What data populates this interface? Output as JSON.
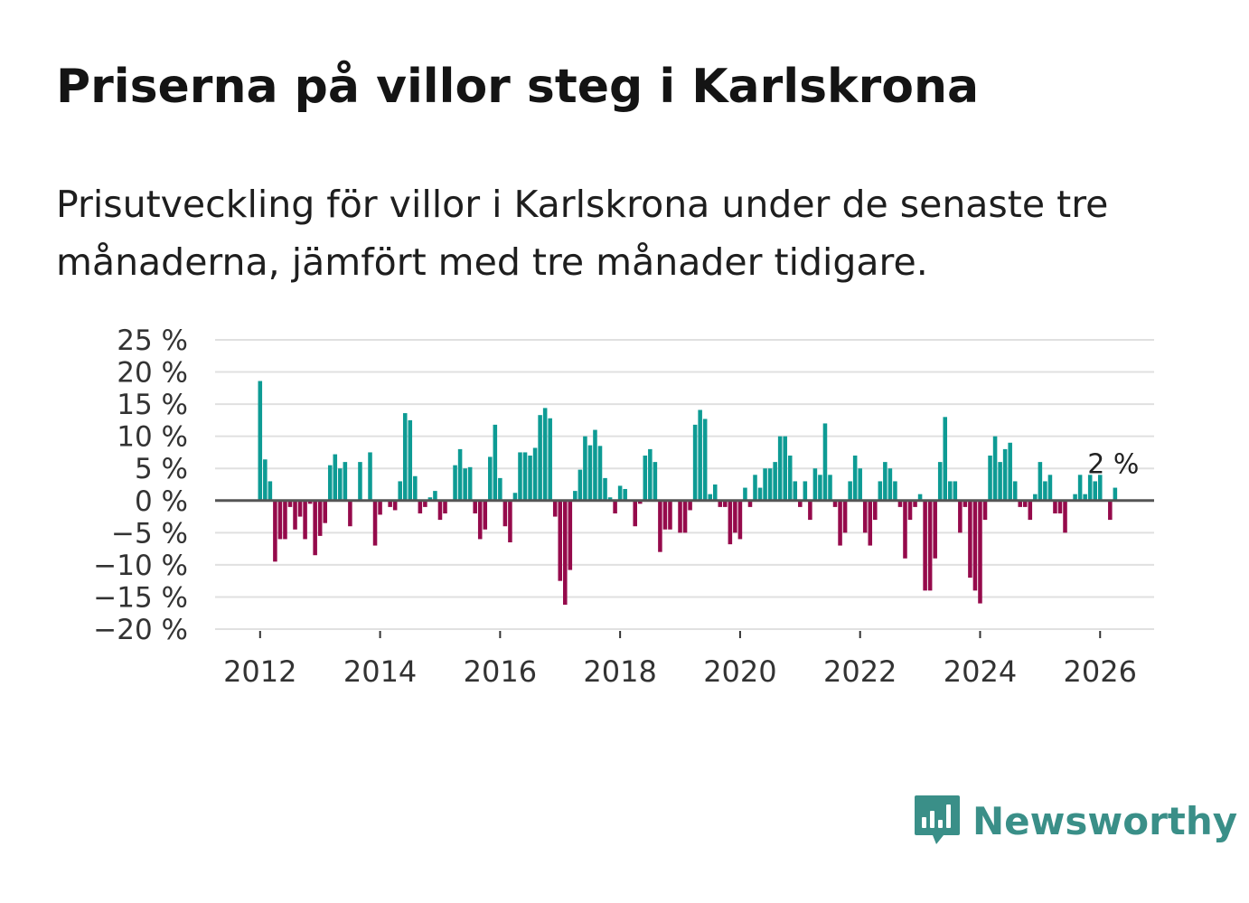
{
  "title": "Priserna på villor steg i Karlskrona",
  "subtitle": "Prisutveckling för villor i Karlskrona under de senaste tre månaderna, jämfört med tre månader tidigare.",
  "brand": {
    "name": "Newsworthy",
    "color": "#3a8f88",
    "icon": "bar-chart-speech-bubble-icon"
  },
  "colors": {
    "positive": "#0d9b94",
    "negative": "#950a4b",
    "grid": "#e0e0e0",
    "zero": "#555555"
  },
  "chart_data": {
    "type": "bar",
    "title": "Priserna på villor steg i Karlskrona",
    "xlabel": "",
    "ylabel": "",
    "ylim": [
      -20,
      25
    ],
    "xlim": [
      2011.25,
      2026.9
    ],
    "y_ticks": [
      25,
      20,
      15,
      10,
      5,
      0,
      -5,
      -10,
      -15,
      -20
    ],
    "y_tick_labels": [
      "25 %",
      "20 %",
      "15 %",
      "10 %",
      "5 %",
      "0 %",
      "−5 %",
      "−10 %",
      "−15 %",
      "−20 %"
    ],
    "x_ticks": [
      2012,
      2014,
      2016,
      2018,
      2020,
      2022,
      2024,
      2026
    ],
    "x_tick_labels": [
      "2012",
      "2014",
      "2016",
      "2018",
      "2020",
      "2022",
      "2024",
      "2026"
    ],
    "start": "2012-01",
    "frequency": "monthly",
    "values": [
      18.6,
      6.4,
      3.0,
      -9.5,
      -6.0,
      -6.0,
      -1.0,
      -4.5,
      -2.5,
      -6.0,
      -0.5,
      -8.5,
      -5.5,
      -3.5,
      5.5,
      7.2,
      5.0,
      6.0,
      -4.0,
      0,
      6.0,
      0,
      7.5,
      -7.0,
      -2.2,
      0,
      -1.0,
      -1.5,
      3.0,
      13.6,
      12.5,
      3.8,
      -2.0,
      -1.0,
      0.5,
      1.5,
      -3.0,
      -2.0,
      0,
      5.5,
      8.0,
      5.0,
      5.2,
      -2.0,
      -6.0,
      -4.5,
      6.8,
      11.8,
      3.5,
      -4.0,
      -6.5,
      1.2,
      7.5,
      7.5,
      7.0,
      8.2,
      13.3,
      14.4,
      12.8,
      -2.5,
      -12.5,
      -16.2,
      -10.8,
      1.5,
      4.8,
      10.0,
      8.6,
      11.0,
      8.5,
      3.5,
      0.5,
      -2.0,
      2.3,
      1.8,
      0,
      -4.0,
      -0.5,
      7.0,
      8.0,
      6.0,
      -8.0,
      -4.5,
      -4.5,
      0,
      -5.0,
      -5.0,
      -1.5,
      11.8,
      14.1,
      12.7,
      1.0,
      2.5,
      -1.0,
      -1.0,
      -6.8,
      -5.0,
      -6.0,
      2.0,
      -1.0,
      4.0,
      2.0,
      5.0,
      5.0,
      6.0,
      10.0,
      10.0,
      7.0,
      3.0,
      -1.0,
      3.0,
      -3.0,
      5.0,
      4.0,
      12.0,
      4.0,
      -1.0,
      -7.0,
      -5.0,
      3.0,
      7.0,
      5.0,
      -5.0,
      -7.0,
      -3.0,
      3.0,
      6.0,
      5.0,
      3.0,
      -1.0,
      -9.0,
      -3.0,
      -1.0,
      1.0,
      -14.0,
      -14.0,
      -9.0,
      6.0,
      13.0,
      3.0,
      3.0,
      -5.0,
      -1.0,
      -12.0,
      -14.0,
      -16.0,
      -3.0,
      7.0,
      10.0,
      6.0,
      8.0,
      9.0,
      3.0,
      -1.0,
      -1.0,
      -3.0,
      1.0,
      6.0,
      3.0,
      4.0,
      -2.0,
      -2.0,
      -5.0,
      0,
      1.0,
      4.0,
      1.0,
      4.0,
      3.0,
      4.0,
      0,
      -3.0,
      2.0
    ],
    "annotation": {
      "label": "2 %",
      "target": "last-value"
    }
  }
}
